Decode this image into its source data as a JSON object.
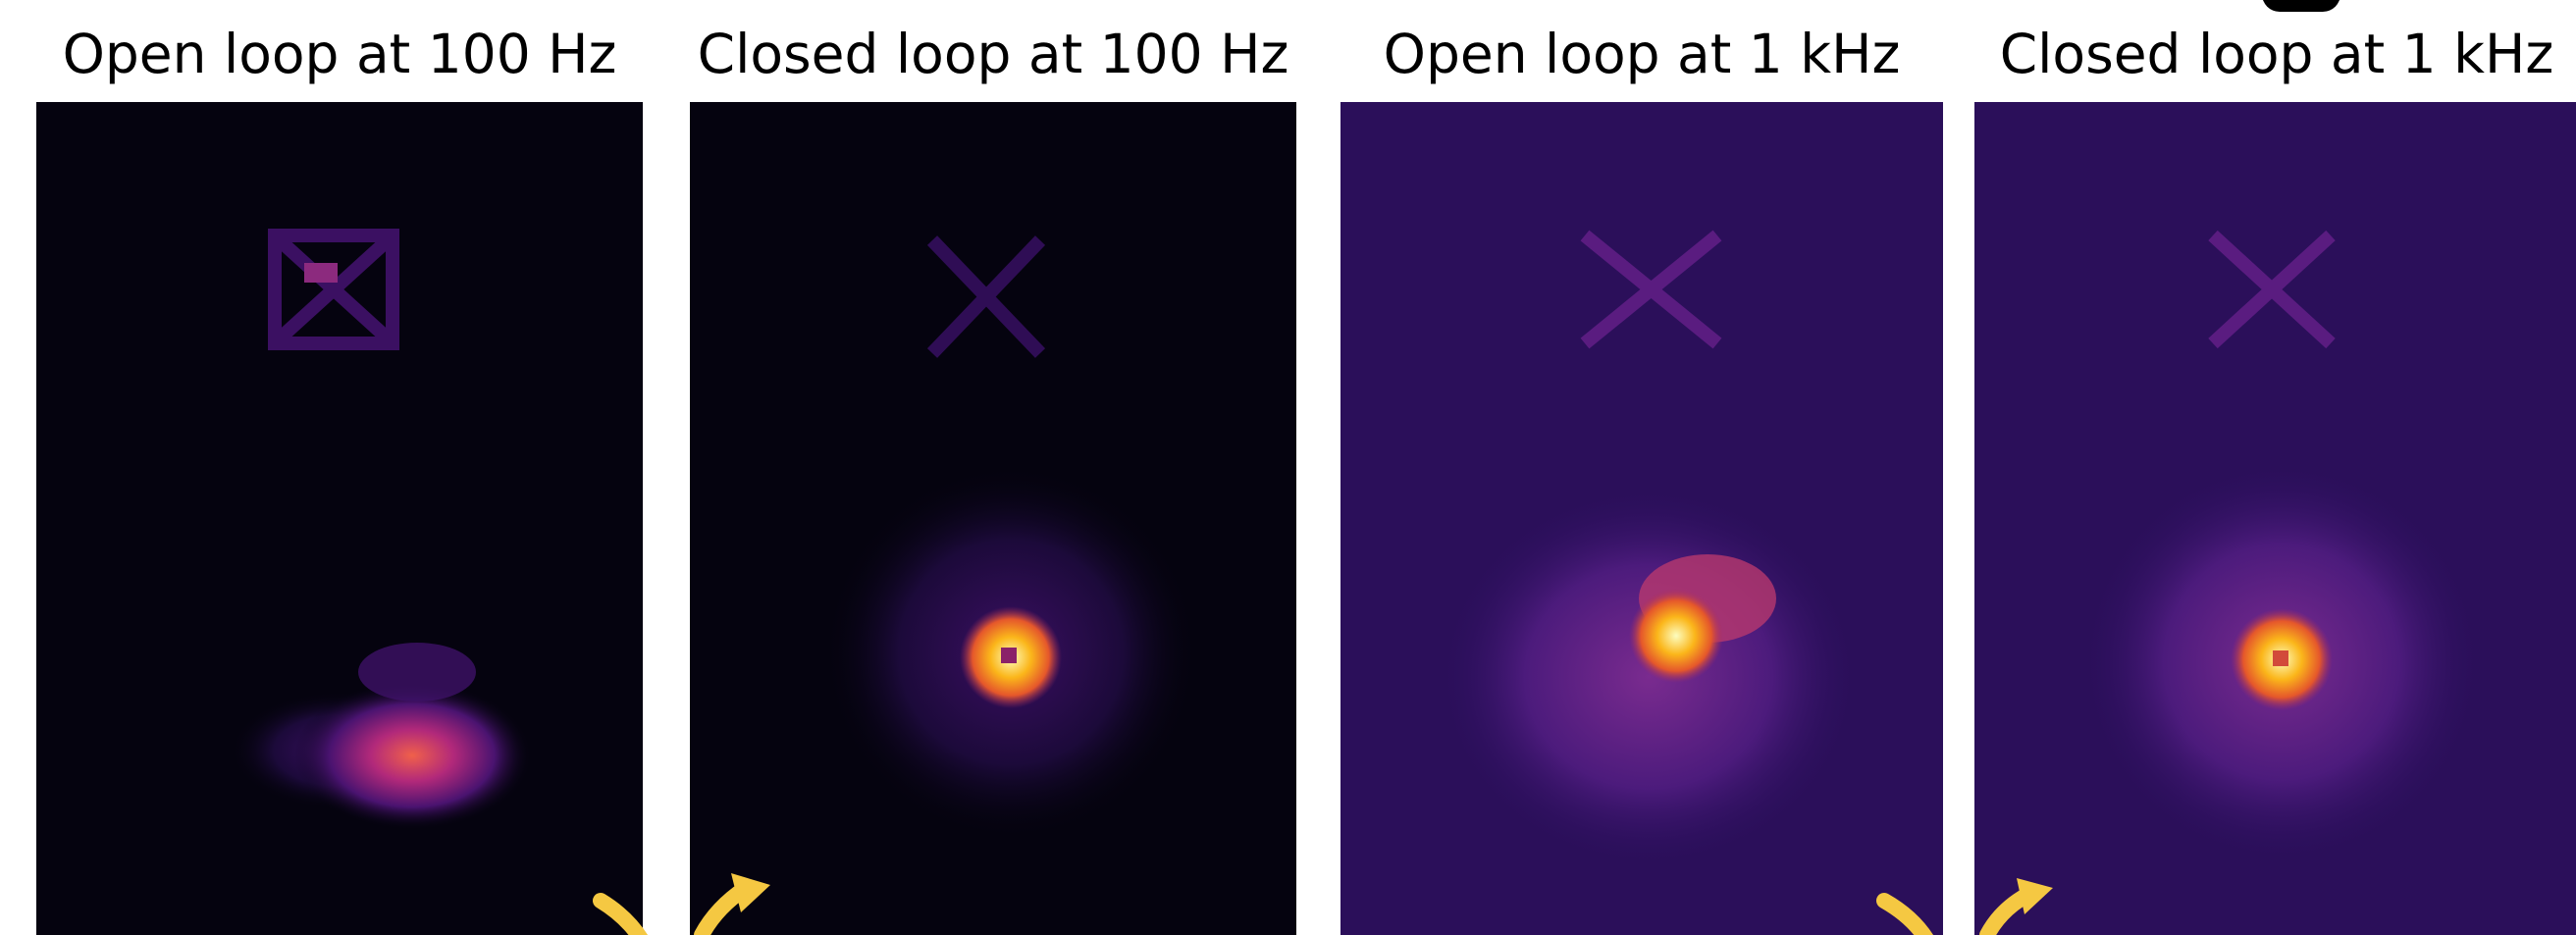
{
  "panels": [
    {
      "title": "Open loop at 100 Hz"
    },
    {
      "title": "Closed loop at 100 Hz"
    },
    {
      "title": "Open loop at 1 kHz"
    },
    {
      "title": "Closed loop at 1 kHz"
    }
  ]
}
